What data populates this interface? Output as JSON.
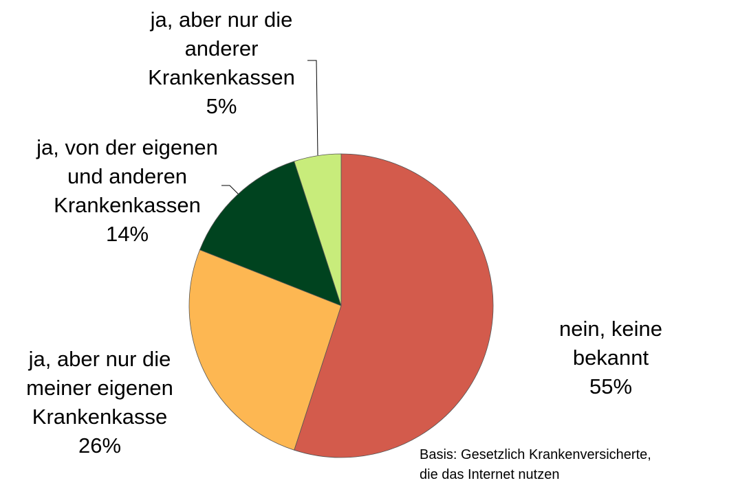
{
  "chart_data": {
    "type": "pie",
    "categories": [
      "nein, keine bekannt",
      "ja, aber nur die\nmeiner eigenen\nKrankenkasse",
      "ja, von der eigenen\nund anderen\nKrankenkassen",
      "ja, aber nur die\nanderer\nKrankenkassen"
    ],
    "values": [
      55,
      26,
      14,
      5
    ],
    "value_labels": [
      "55%",
      "26%",
      "14%",
      "5%"
    ],
    "colors": [
      "#d35b4c",
      "#fdb752",
      "#00431f",
      "#c8ec7b"
    ],
    "note": "Basis: Gesetzlich Krankenversicherte,\ndie das Internet nutzen"
  }
}
